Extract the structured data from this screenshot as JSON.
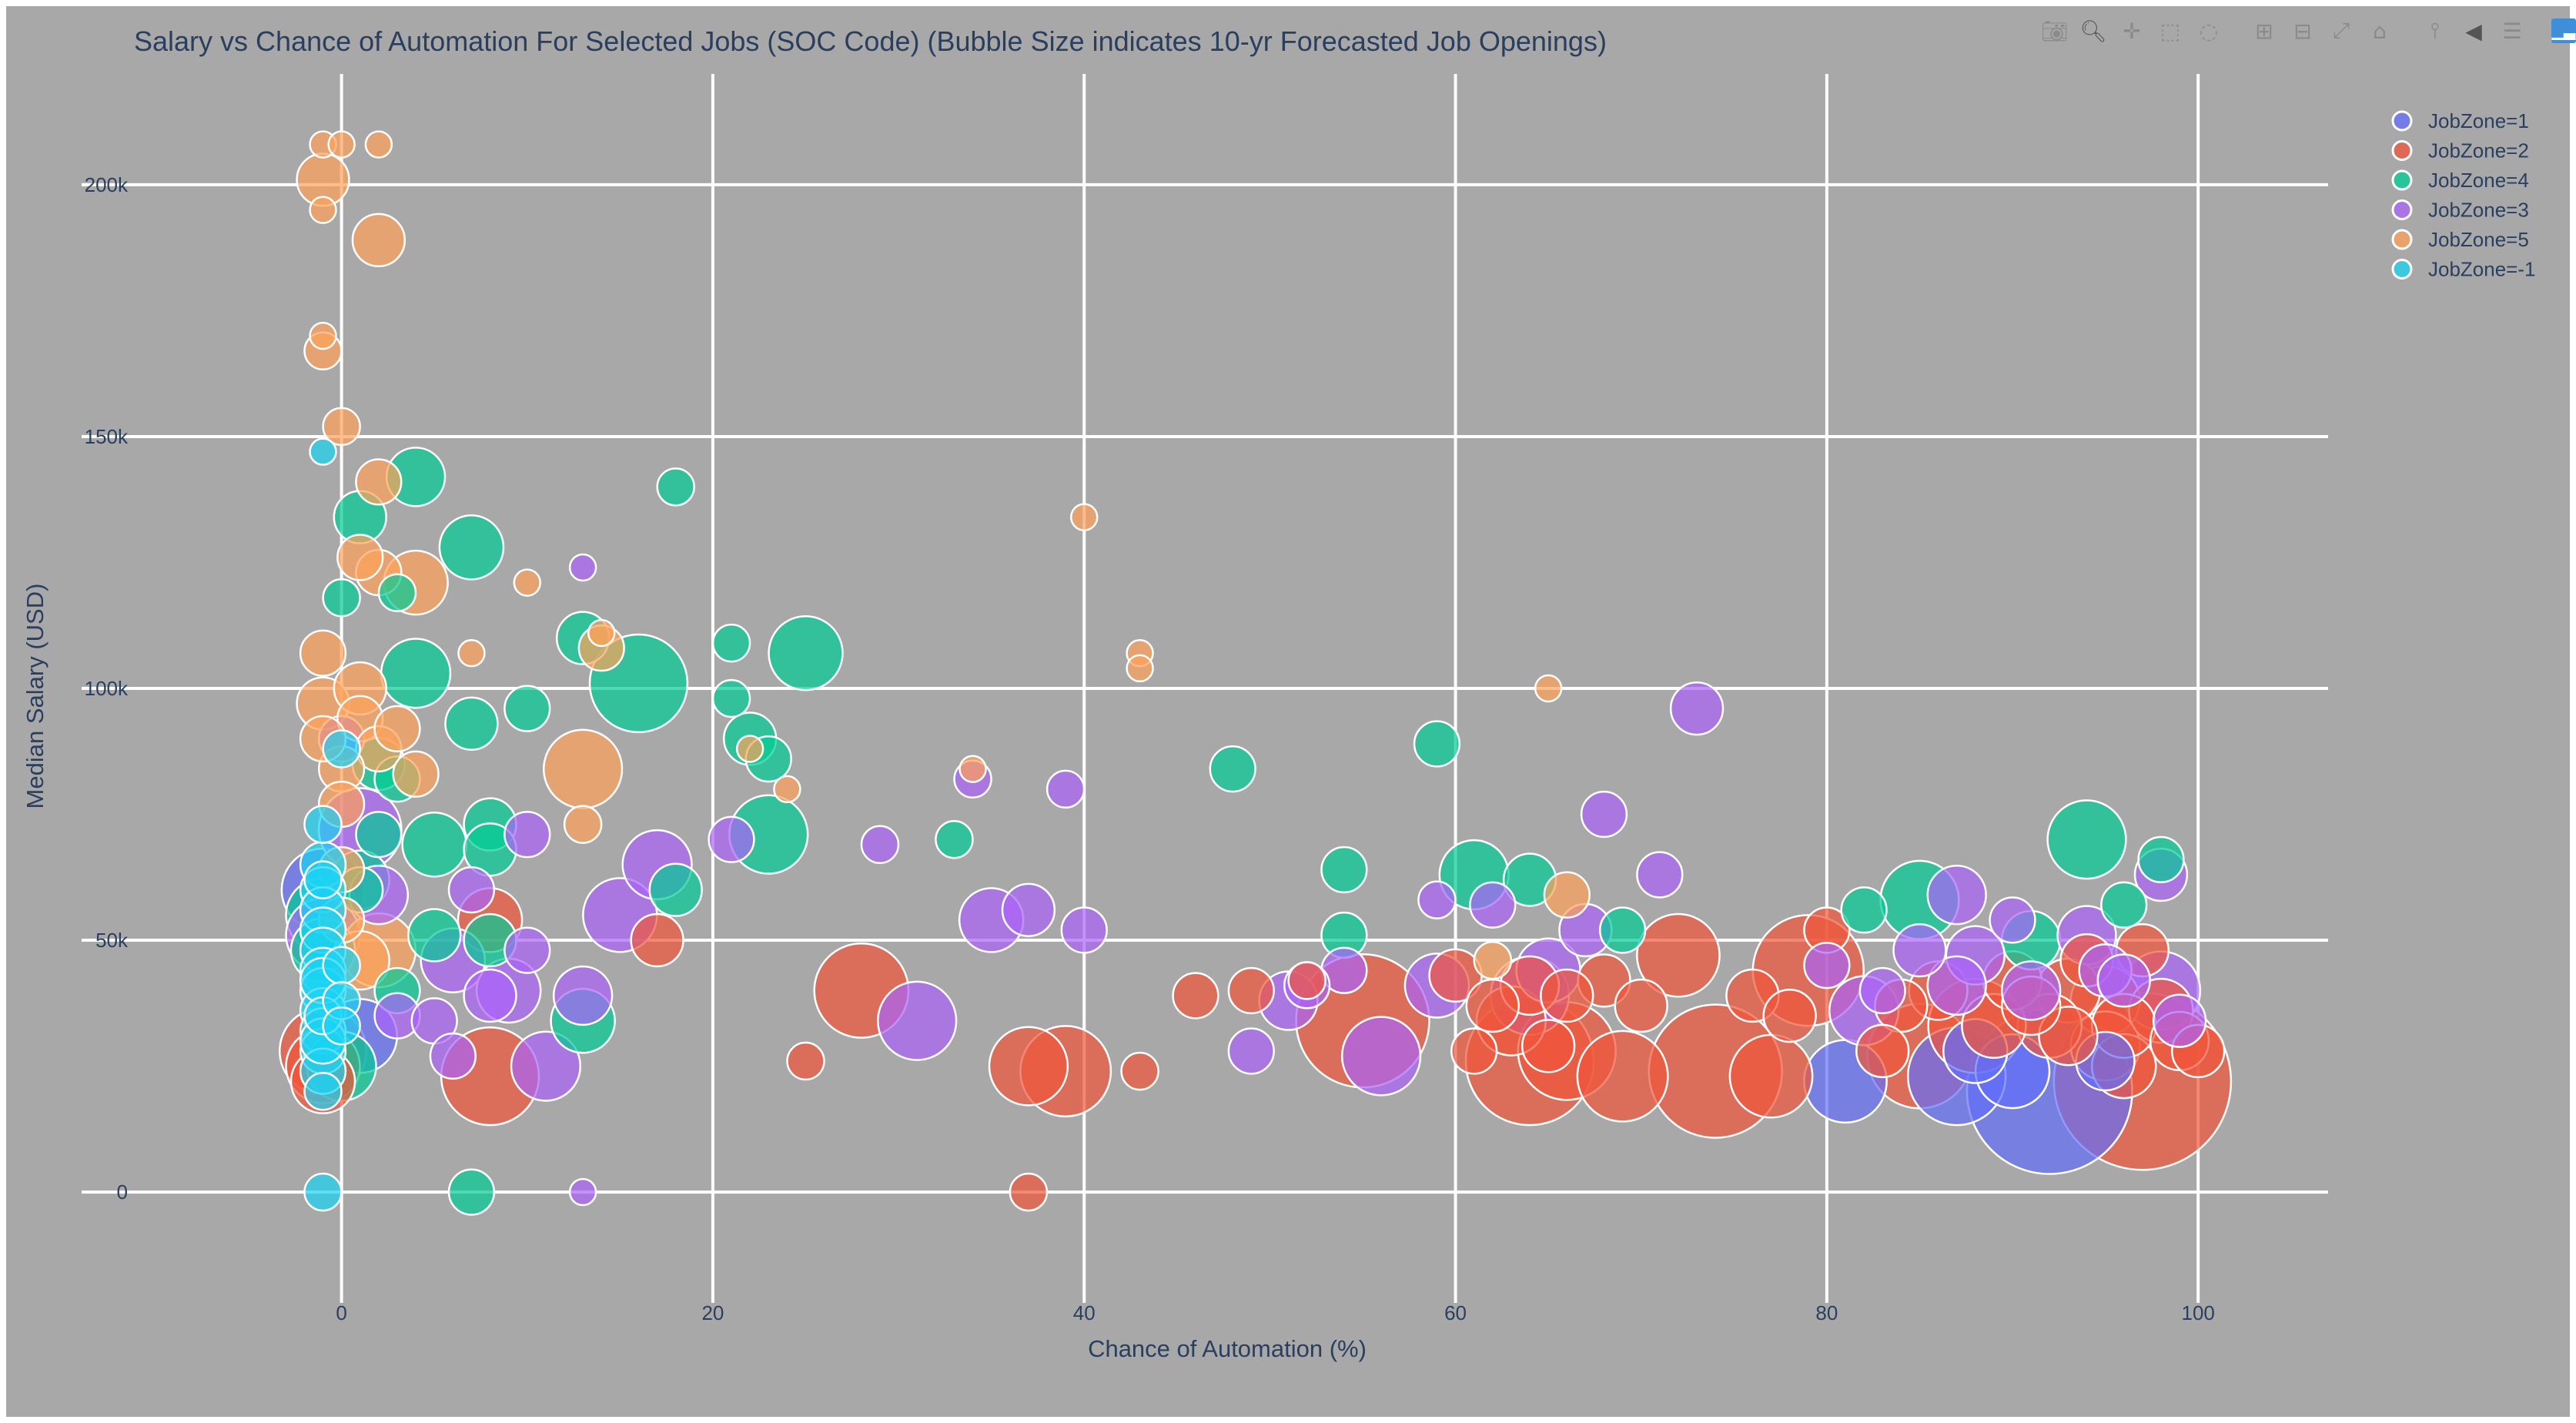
{
  "chart_data": {
    "type": "scatter",
    "title": "Salary vs Chance of Automation For Selected Jobs (SOC Code) (Bubble Size indicates 10-yr Forecasted Job Openings)",
    "xlabel": "Chance of Automation (%)",
    "ylabel": "Median Salary (USD)",
    "xlim": [
      -14,
      107
    ],
    "ylim": [
      -22000,
      222000
    ],
    "x_ticks": [
      0,
      20,
      40,
      60,
      80,
      100
    ],
    "x_tick_labels": [
      "0",
      "20",
      "40",
      "60",
      "80",
      "100"
    ],
    "y_ticks": [
      0,
      50000,
      100000,
      150000,
      200000
    ],
    "y_tick_labels": [
      "0",
      "50k",
      "100k",
      "150k",
      "200k"
    ],
    "grid": true,
    "legend_position": "top-right",
    "size_encoding": "10-yr forecasted job openings (relative)",
    "series": [
      {
        "name": "JobZone=1",
        "color": "#636efa",
        "points": [
          [
            92,
            20000,
            40
          ],
          [
            87,
            23000,
            14
          ],
          [
            81,
            22000,
            10
          ],
          [
            1,
            31000,
            8
          ],
          [
            -1,
            60000,
            10
          ],
          [
            88,
            28000,
            6
          ],
          [
            90,
            24000,
            8
          ],
          [
            95,
            26000,
            5
          ]
        ]
      },
      {
        "name": "JobZone=2",
        "color": "#ef553b",
        "points": [
          [
            97,
            22000,
            46
          ],
          [
            74,
            24000,
            26
          ],
          [
            64,
            26000,
            24
          ],
          [
            55,
            34000,
            26
          ],
          [
            79,
            44000,
            18
          ],
          [
            8,
            23000,
            14
          ],
          [
            28,
            40000,
            13
          ],
          [
            39,
            24000,
            12
          ],
          [
            37,
            25000,
            9
          ],
          [
            66,
            28000,
            14
          ],
          [
            69,
            23000,
            12
          ],
          [
            72,
            47000,
            10
          ],
          [
            77,
            23000,
            10
          ],
          [
            85,
            27000,
            16
          ],
          [
            88,
            33000,
            13
          ],
          [
            -1,
            28000,
            11
          ],
          [
            -1,
            25000,
            8
          ],
          [
            -1,
            22000,
            6
          ],
          [
            8,
            54000,
            6
          ],
          [
            17,
            50000,
            4
          ],
          [
            43,
            24000,
            2
          ],
          [
            46,
            39000,
            3
          ],
          [
            49,
            40000,
            3
          ],
          [
            52,
            42000,
            2
          ],
          [
            60,
            43000,
            4
          ],
          [
            62,
            37000,
            4
          ],
          [
            68,
            42000,
            4
          ],
          [
            70,
            37000,
            4
          ],
          [
            76,
            39000,
            4
          ],
          [
            84,
            37000,
            4
          ],
          [
            86,
            40000,
            5
          ],
          [
            90,
            42000,
            5
          ],
          [
            93,
            40000,
            6
          ],
          [
            95,
            38000,
            7
          ],
          [
            98,
            36000,
            6
          ],
          [
            99,
            30000,
            5
          ],
          [
            96,
            25000,
            6
          ],
          [
            93,
            31000,
            5
          ],
          [
            91,
            37000,
            5
          ],
          [
            100,
            28000,
            4
          ],
          [
            94,
            46000,
            4
          ],
          [
            97,
            48000,
            4
          ],
          [
            37,
            0,
            2
          ],
          [
            25,
            26000,
            2
          ],
          [
            61,
            28000,
            3
          ],
          [
            66,
            39000,
            4
          ],
          [
            78,
            35000,
            4
          ],
          [
            83,
            28000,
            4
          ],
          [
            80,
            52000,
            3
          ],
          [
            65,
            29000,
            4
          ],
          [
            64,
            41000,
            5
          ],
          [
            63,
            34000,
            7
          ],
          [
            95,
            29000,
            7
          ],
          [
            96,
            33000,
            6
          ],
          [
            92,
            33000,
            6
          ],
          [
            89,
            33000,
            6
          ]
        ]
      },
      {
        "name": "JobZone=4",
        "color": "#00cc96",
        "points": [
          [
            16,
            101000,
            14
          ],
          [
            25,
            107000,
            8
          ],
          [
            23,
            71000,
            9
          ],
          [
            94,
            70000,
            9
          ],
          [
            85,
            58000,
            9
          ],
          [
            61,
            63000,
            7
          ],
          [
            7,
            128000,
            6
          ],
          [
            4,
            103000,
            7
          ],
          [
            4,
            142000,
            5
          ],
          [
            1,
            134000,
            4
          ],
          [
            13,
            110000,
            4
          ],
          [
            7,
            93000,
            4
          ],
          [
            22,
            90000,
            4
          ],
          [
            23,
            86000,
            3
          ],
          [
            59,
            89000,
            3
          ],
          [
            54,
            64000,
            3
          ],
          [
            64,
            62000,
            4
          ],
          [
            91,
            50000,
            5
          ],
          [
            8,
            73000,
            4
          ],
          [
            8,
            68000,
            4
          ],
          [
            5,
            69000,
            6
          ],
          [
            13,
            34000,
            6
          ],
          [
            0,
            25000,
            7
          ],
          [
            -1,
            55000,
            8
          ],
          [
            -1,
            48000,
            6
          ],
          [
            1,
            62000,
            5
          ],
          [
            2,
            85000,
            4
          ],
          [
            3,
            40000,
            3
          ],
          [
            18,
            60000,
            4
          ],
          [
            48,
            84000,
            3
          ],
          [
            18,
            140000,
            2
          ],
          [
            21,
            109000,
            2
          ],
          [
            21,
            98000,
            2
          ],
          [
            33,
            70000,
            2
          ],
          [
            98,
            66000,
            3
          ],
          [
            96,
            57000,
            3
          ],
          [
            7,
            0,
            3
          ],
          [
            82,
            56000,
            3
          ],
          [
            54,
            51000,
            3
          ],
          [
            69,
            52000,
            3
          ],
          [
            3,
            119000,
            2
          ],
          [
            0,
            118000,
            2
          ],
          [
            10,
            96000,
            3
          ],
          [
            5,
            51000,
            4
          ],
          [
            3,
            82000,
            3
          ],
          [
            1,
            60000,
            3
          ],
          [
            2,
            71000,
            3
          ],
          [
            8,
            50000,
            4
          ]
        ]
      },
      {
        "name": "JobZone=3",
        "color": "#ab63fa",
        "points": [
          [
            1,
            72000,
            10
          ],
          [
            -1,
            51000,
            8
          ],
          [
            15,
            55000,
            8
          ],
          [
            17,
            65000,
            7
          ],
          [
            31,
            34000,
            9
          ],
          [
            56,
            27000,
            9
          ],
          [
            11,
            25000,
            7
          ],
          [
            6,
            46000,
            6
          ],
          [
            9,
            40000,
            6
          ],
          [
            13,
            39000,
            5
          ],
          [
            35,
            54000,
            6
          ],
          [
            37,
            56000,
            4
          ],
          [
            51,
            38000,
            5
          ],
          [
            59,
            41000,
            6
          ],
          [
            64,
            39000,
            9
          ],
          [
            65,
            44000,
            6
          ],
          [
            67,
            52000,
            4
          ],
          [
            73,
            96000,
            4
          ],
          [
            68,
            75000,
            3
          ],
          [
            87,
            59000,
            5
          ],
          [
            88,
            47000,
            5
          ],
          [
            82,
            36000,
            7
          ],
          [
            87,
            41000,
            5
          ],
          [
            94,
            51000,
            5
          ],
          [
            98,
            40000,
            9
          ],
          [
            98,
            63000,
            4
          ],
          [
            2,
            59000,
            5
          ],
          [
            3,
            35000,
            3
          ],
          [
            5,
            34000,
            3
          ],
          [
            10,
            71000,
            3
          ],
          [
            10,
            48000,
            3
          ],
          [
            21,
            70000,
            3
          ],
          [
            8,
            39000,
            4
          ],
          [
            40,
            52000,
            3
          ],
          [
            54,
            44000,
            3
          ],
          [
            62,
            57000,
            3
          ],
          [
            71,
            63000,
            3
          ],
          [
            85,
            48000,
            4
          ],
          [
            91,
            40000,
            5
          ],
          [
            95,
            44000,
            4
          ],
          [
            0,
            90000,
            3
          ],
          [
            13,
            0,
            1
          ],
          [
            13,
            124000,
            1
          ],
          [
            34,
            82000,
            2
          ],
          [
            39,
            80000,
            2
          ],
          [
            49,
            28000,
            3
          ],
          [
            52,
            41000,
            3
          ],
          [
            59,
            58000,
            2
          ],
          [
            80,
            45000,
            3
          ],
          [
            83,
            40000,
            3
          ],
          [
            90,
            54000,
            3
          ],
          [
            96,
            42000,
            4
          ],
          [
            99,
            34000,
            4
          ],
          [
            6,
            27000,
            3
          ],
          [
            7,
            60000,
            3
          ],
          [
            29,
            69000,
            2
          ]
        ]
      },
      {
        "name": "JobZone=5",
        "color": "#fea15a",
        "points": [
          [
            -1,
            201000,
            4
          ],
          [
            2,
            189000,
            4
          ],
          [
            -1,
            167000,
            2
          ],
          [
            -1,
            170000,
            1
          ],
          [
            -1,
            195000,
            1
          ],
          [
            -1,
            208000,
            1
          ],
          [
            0,
            208000,
            1
          ],
          [
            2,
            208000,
            1
          ],
          [
            0,
            152000,
            2
          ],
          [
            2,
            141000,
            3
          ],
          [
            4,
            121000,
            6
          ],
          [
            2,
            123000,
            3
          ],
          [
            1,
            126000,
            3
          ],
          [
            -1,
            107000,
            3
          ],
          [
            -1,
            97000,
            4
          ],
          [
            1,
            100000,
            4
          ],
          [
            1,
            94000,
            3
          ],
          [
            2,
            88000,
            3
          ],
          [
            4,
            83000,
            3
          ],
          [
            0,
            84000,
            3
          ],
          [
            0,
            77000,
            3
          ],
          [
            0,
            64000,
            3
          ],
          [
            2,
            48000,
            8
          ],
          [
            1,
            46000,
            5
          ],
          [
            13,
            84000,
            9
          ],
          [
            14,
            108000,
            3
          ],
          [
            14,
            111000,
            1
          ],
          [
            10,
            121000,
            1
          ],
          [
            40,
            134000,
            1
          ],
          [
            43,
            107000,
            1
          ],
          [
            43,
            104000,
            1
          ],
          [
            65,
            100000,
            1
          ],
          [
            66,
            59000,
            3
          ],
          [
            62,
            46000,
            2
          ],
          [
            34,
            84000,
            1
          ],
          [
            22,
            88000,
            1
          ],
          [
            24,
            80000,
            1
          ],
          [
            7,
            107000,
            1
          ],
          [
            13,
            73000,
            2
          ],
          [
            -1,
            90000,
            3
          ],
          [
            3,
            92000,
            3
          ],
          [
            0,
            54000,
            3
          ]
        ]
      },
      {
        "name": "JobZone=-1",
        "color": "#19d3f3",
        "points": [
          [
            -1,
            65000,
            3
          ],
          [
            -1,
            60000,
            3
          ],
          [
            -1,
            56000,
            3
          ],
          [
            -1,
            52000,
            3
          ],
          [
            -1,
            48000,
            3
          ],
          [
            -1,
            44000,
            3
          ],
          [
            -1,
            40000,
            3
          ],
          [
            -1,
            36000,
            3
          ],
          [
            -1,
            32000,
            3
          ],
          [
            -1,
            28000,
            3
          ],
          [
            -1,
            24000,
            3
          ],
          [
            -1,
            30000,
            3
          ],
          [
            -1,
            20000,
            2
          ],
          [
            -1,
            0,
            2
          ],
          [
            -1,
            147000,
            1
          ],
          [
            0,
            88000,
            2
          ],
          [
            -1,
            73000,
            2
          ],
          [
            -1,
            42000,
            3
          ],
          [
            -1,
            62000,
            2
          ],
          [
            -1,
            35000,
            2
          ],
          [
            0,
            45000,
            2
          ],
          [
            0,
            38000,
            2
          ],
          [
            0,
            33000,
            2
          ]
        ]
      }
    ]
  },
  "modebar": {
    "icons": [
      "camera-icon",
      "zoom-icon",
      "pan-icon",
      "box-select-icon",
      "lasso-icon",
      "zoom-in-icon",
      "zoom-out-icon",
      "autoscale-icon",
      "reset-axes-icon",
      "spike-lines-icon",
      "hover-closest-icon",
      "hover-compare-icon",
      "plotly-logo-icon"
    ]
  }
}
